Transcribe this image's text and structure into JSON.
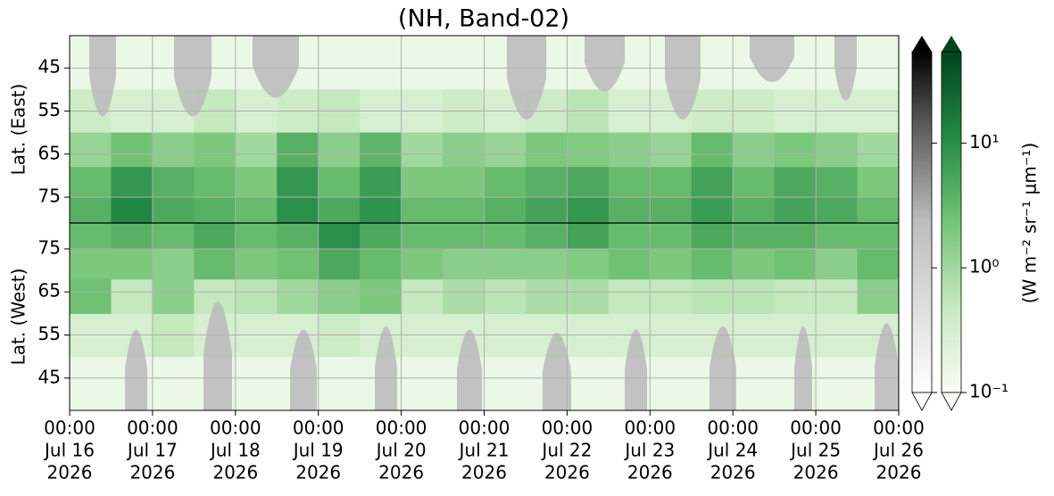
{
  "chart_data": {
    "type": "heatmap",
    "title": "(NH, Band-02)",
    "time_bins": [
      "2026-07-16T00:00",
      "2026-07-16T12:00",
      "2026-07-17T00:00",
      "2026-07-17T12:00",
      "2026-07-18T00:00",
      "2026-07-18T12:00",
      "2026-07-19T00:00",
      "2026-07-19T12:00",
      "2026-07-20T00:00",
      "2026-07-20T12:00",
      "2026-07-21T00:00",
      "2026-07-21T12:00",
      "2026-07-22T00:00",
      "2026-07-22T12:00",
      "2026-07-23T00:00",
      "2026-07-23T12:00",
      "2026-07-24T00:00",
      "2026-07-24T12:00",
      "2026-07-25T00:00",
      "2026-07-25T12:00",
      "2026-07-26T00:00"
    ],
    "xlim": [
      "2026-07-16T00:00",
      "2026-07-26T00:00"
    ],
    "xticks": [
      {
        "value": "2026-07-16T00:00",
        "label": [
          "00:00",
          "Jul 16",
          "2026"
        ]
      },
      {
        "value": "2026-07-17T00:00",
        "label": [
          "00:00",
          "Jul 17",
          "2026"
        ]
      },
      {
        "value": "2026-07-18T00:00",
        "label": [
          "00:00",
          "Jul 18",
          "2026"
        ]
      },
      {
        "value": "2026-07-19T00:00",
        "label": [
          "00:00",
          "Jul 19",
          "2026"
        ]
      },
      {
        "value": "2026-07-20T00:00",
        "label": [
          "00:00",
          "Jul 20",
          "2026"
        ]
      },
      {
        "value": "2026-07-21T00:00",
        "label": [
          "00:00",
          "Jul 21",
          "2026"
        ]
      },
      {
        "value": "2026-07-22T00:00",
        "label": [
          "00:00",
          "Jul 22",
          "2026"
        ]
      },
      {
        "value": "2026-07-23T00:00",
        "label": [
          "00:00",
          "Jul 23",
          "2026"
        ]
      },
      {
        "value": "2026-07-24T00:00",
        "label": [
          "00:00",
          "Jul 24",
          "2026"
        ]
      },
      {
        "value": "2026-07-25T00:00",
        "label": [
          "00:00",
          "Jul 25",
          "2026"
        ]
      },
      {
        "value": "2026-07-26T00:00",
        "label": [
          "00:00",
          "Jul 26",
          "2026"
        ]
      }
    ],
    "lat_bins": [
      37.5,
      50,
      60,
      68,
      75,
      81
    ],
    "grid": true,
    "panels": [
      {
        "ylabel": "Lat. (East)",
        "ylim": [
          81,
          37.5
        ],
        "yticks": [
          45,
          55,
          65,
          75
        ],
        "values": [
          [
            0.15,
            0.15,
            0.15,
            0.15,
            0.15,
            0.15,
            0.15,
            0.15,
            0.15,
            0.15,
            0.15,
            0.15,
            0.15,
            0.15,
            0.15,
            0.15,
            0.15,
            0.15,
            0.15,
            0.15
          ],
          [
            0.4,
            0.3,
            0.3,
            0.5,
            0.3,
            0.4,
            0.5,
            0.3,
            0.3,
            0.4,
            0.3,
            0.4,
            0.6,
            0.3,
            0.3,
            0.4,
            0.4,
            0.3,
            0.3,
            0.3
          ],
          [
            1.2,
            2.5,
            1.5,
            2,
            1,
            4,
            1.5,
            3.5,
            1,
            1.5,
            1.2,
            2,
            1.8,
            1.5,
            1.2,
            3,
            1.5,
            2,
            1.5,
            1
          ],
          [
            3,
            8,
            4,
            3,
            2,
            8,
            3,
            7,
            2,
            2,
            3,
            4,
            5,
            3,
            3,
            6,
            3,
            5,
            4,
            2
          ],
          [
            4,
            12,
            5,
            4,
            3,
            10,
            5,
            9,
            3,
            3,
            4,
            6,
            8,
            4,
            4,
            7,
            4,
            6,
            5,
            3
          ]
        ]
      },
      {
        "ylabel": "Lat. (West)",
        "ylim": [
          37.5,
          81
        ],
        "yticks": [
          75,
          65,
          55,
          45
        ],
        "values": [
          [
            0.15,
            0.15,
            0.15,
            0.15,
            0.15,
            0.15,
            0.15,
            0.15,
            0.15,
            0.15,
            0.15,
            0.15,
            0.15,
            0.15,
            0.15,
            0.15,
            0.15,
            0.15,
            0.15,
            0.15
          ],
          [
            0.3,
            0.3,
            0.5,
            0.3,
            0.3,
            0.3,
            0.4,
            0.3,
            0.3,
            0.3,
            0.3,
            0.3,
            0.3,
            0.3,
            0.3,
            0.3,
            0.3,
            0.3,
            0.3,
            0.3
          ],
          [
            2.5,
            0.5,
            1.5,
            0.5,
            0.6,
            1,
            1.5,
            2,
            0.5,
            0.8,
            0.6,
            0.8,
            0.8,
            0.5,
            0.5,
            0.6,
            0.6,
            0.5,
            0.5,
            1.5
          ],
          [
            2,
            2,
            1.5,
            3,
            2,
            2.5,
            5,
            3,
            2,
            1.5,
            1.5,
            1.5,
            1.8,
            2.5,
            2,
            3,
            2,
            2.5,
            1.5,
            3
          ],
          [
            3,
            4,
            3,
            5,
            3,
            4,
            10,
            5,
            3,
            3,
            3,
            4,
            6,
            3,
            3,
            5,
            4,
            4,
            3,
            3
          ]
        ]
      }
    ],
    "colorbar": {
      "scale": "log",
      "clim": [
        0.1,
        54
      ],
      "label": "(W m⁻² sr⁻¹ μm⁻¹)",
      "ticks": [
        {
          "value": 0.1,
          "label": "10⁻¹"
        },
        {
          "value": 1,
          "label": "10⁰"
        },
        {
          "value": 10,
          "label": "10¹"
        }
      ]
    }
  }
}
